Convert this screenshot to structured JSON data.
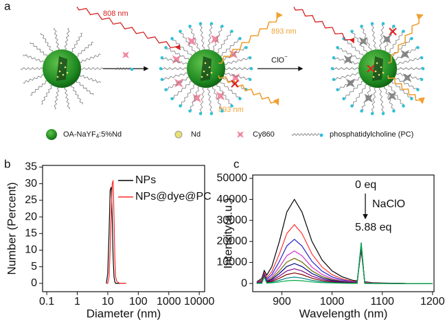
{
  "panel_labels": [
    "a",
    "b",
    "c"
  ],
  "schematic": {
    "laser_label": "808 nm",
    "emission_labels": [
      "893 nm",
      "893 nm"
    ],
    "reagent": "ClO",
    "reagent_charge": "−",
    "legend": [
      {
        "parts": [
          "OA-NaYF",
          "4",
          ":5%Nd"
        ]
      },
      {
        "label": "Nd"
      },
      {
        "label": "Cy860"
      },
      {
        "label": "phosphatidylcholine (PC)"
      }
    ]
  },
  "chart_data": [
    {
      "type": "line",
      "xlabel": "Diameter (nm)",
      "ylabel": "Number (Percent)",
      "xscale": "log",
      "xlim": [
        0.073,
        15000
      ],
      "xticks": [
        0.1,
        1,
        10,
        100,
        1000,
        10000
      ],
      "ylim": [
        -2.5,
        35.5
      ],
      "yticks": [
        0,
        5,
        10,
        15,
        20,
        25,
        30,
        35
      ],
      "legend": "upper right",
      "x": [
        9,
        10,
        11,
        12,
        13,
        14,
        15,
        16,
        17,
        18,
        20,
        25,
        40
      ],
      "series": [
        {
          "name": "NPs",
          "color": "#000000",
          "values": [
            0,
            3,
            15,
            28,
            29,
            20,
            8,
            2,
            0.5,
            0,
            0,
            0,
            0
          ]
        },
        {
          "name": "NPs@dye@PC",
          "color": "#ff2a2a",
          "values": [
            0,
            0,
            2,
            10,
            22,
            30,
            31,
            20,
            8,
            2,
            0.5,
            0,
            0
          ]
        }
      ]
    },
    {
      "type": "line",
      "xlabel": "Wavelength (nm)",
      "ylabel": "Intensity(a.u.)",
      "xlim": [
        842,
        1203
      ],
      "xticks": [
        900,
        1000,
        1100,
        1200
      ],
      "ylim": [
        -3900,
        51600
      ],
      "yticks": [
        0,
        10000,
        20000,
        30000,
        40000,
        50000
      ],
      "annotations": [
        "0 eq",
        "NaClO",
        "5.88 eq"
      ],
      "x": [
        850,
        860,
        865,
        870,
        880,
        895,
        910,
        925,
        940,
        960,
        980,
        1000,
        1020,
        1040,
        1050,
        1058,
        1065,
        1080,
        1100,
        1150,
        1200
      ],
      "series": [
        {
          "color": "#000000",
          "values": [
            800,
            2400,
            6200,
            4000,
            8000,
            20000,
            34000,
            40000,
            34000,
            20000,
            11200,
            6000,
            3200,
            1600,
            1200,
            15800,
            800,
            400,
            200,
            0,
            0
          ]
        },
        {
          "color": "#ff3333",
          "values": [
            560,
            1680,
            5240,
            2800,
            5600,
            14000,
            23800,
            28000,
            23800,
            14000,
            7840,
            4200,
            2240,
            1120,
            840,
            17560,
            560,
            280,
            140,
            0,
            0
          ]
        },
        {
          "color": "#2222cc",
          "values": [
            420,
            1260,
            4680,
            2100,
            4200,
            10500,
            17850,
            21000,
            17850,
            10500,
            5880,
            3150,
            1680,
            840,
            630,
            17420,
            420,
            210,
            105,
            0,
            0
          ]
        },
        {
          "color": "#cc33cc",
          "values": [
            310,
            930,
            4240,
            1550,
            3100,
            7750,
            13200,
            15500,
            13200,
            7750,
            4340,
            2330,
            1240,
            620,
            470,
            17300,
            310,
            160,
            80,
            0,
            0
          ]
        },
        {
          "color": "#6b6b00",
          "values": [
            240,
            720,
            3960,
            1200,
            2400,
            6000,
            10200,
            12000,
            10200,
            6000,
            3360,
            1800,
            960,
            480,
            360,
            17500,
            240,
            120,
            60,
            0,
            0
          ]
        },
        {
          "color": "#000080",
          "values": [
            190,
            570,
            3760,
            950,
            1900,
            4750,
            8080,
            9500,
            8080,
            4750,
            2660,
            1430,
            760,
            380,
            290,
            18000,
            190,
            100,
            50,
            0,
            0
          ]
        },
        {
          "color": "#800080",
          "values": [
            140,
            420,
            3560,
            700,
            1400,
            3500,
            5950,
            7000,
            5950,
            3500,
            1960,
            1050,
            560,
            280,
            210,
            18500,
            140,
            70,
            35,
            0,
            0
          ]
        },
        {
          "color": "#800000",
          "values": [
            100,
            300,
            3400,
            500,
            1000,
            2500,
            4250,
            5000,
            4250,
            2500,
            1400,
            750,
            400,
            200,
            150,
            19000,
            100,
            50,
            25,
            0,
            0
          ]
        },
        {
          "color": "#008080",
          "values": [
            60,
            180,
            3240,
            300,
            600,
            1500,
            2550,
            3000,
            2550,
            1500,
            840,
            450,
            240,
            120,
            90,
            19500,
            60,
            30,
            15,
            0,
            0
          ]
        },
        {
          "color": "#00aa44",
          "values": [
            30,
            90,
            3120,
            150,
            300,
            750,
            1280,
            1500,
            1280,
            750,
            420,
            230,
            120,
            60,
            50,
            19000,
            30,
            20,
            10,
            0,
            0
          ]
        }
      ]
    }
  ]
}
